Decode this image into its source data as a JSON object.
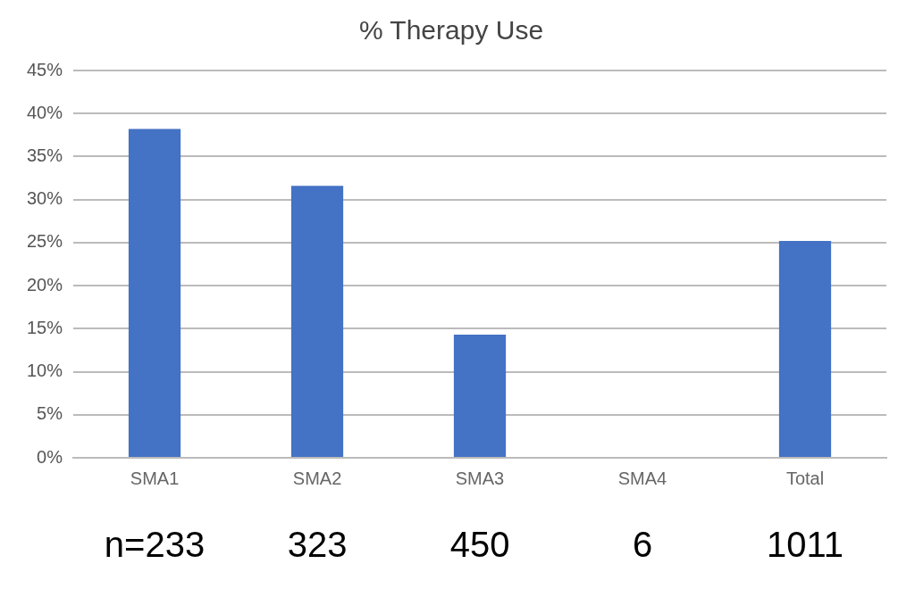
{
  "chart_data": {
    "type": "bar",
    "title": "% Therapy Use",
    "categories": [
      "SMA1",
      "SMA2",
      "SMA3",
      "SMA4",
      "Total"
    ],
    "values": [
      38.2,
      31.6,
      14.3,
      0,
      25.2
    ],
    "color": "#4472c4",
    "ylim": [
      0,
      45
    ],
    "yticks": [
      {
        "value": 0,
        "label": "0%"
      },
      {
        "value": 5,
        "label": "5%"
      },
      {
        "value": 10,
        "label": "10%"
      },
      {
        "value": 15,
        "label": "15%"
      },
      {
        "value": 20,
        "label": "20%"
      },
      {
        "value": 25,
        "label": "25%"
      },
      {
        "value": 30,
        "label": "30%"
      },
      {
        "value": 35,
        "label": "35%"
      },
      {
        "value": 40,
        "label": "40%"
      },
      {
        "value": 45,
        "label": "45%"
      }
    ],
    "grid": "y",
    "legend": false,
    "annotations": [
      "n=233",
      "323",
      "450",
      "6",
      "1011"
    ]
  }
}
